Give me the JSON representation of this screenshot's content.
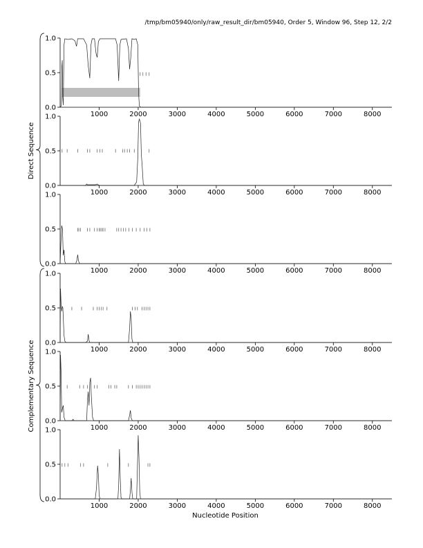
{
  "chart_data": {
    "type": "line",
    "title": "/tmp/bm05940/only/raw_result_dir/bm05940, Order 5, Window 96, Step 12, 2/2",
    "xlabel": "Nucleotide Position",
    "group_labels": [
      "Direct Sequence",
      "Complementary Sequence"
    ],
    "xlim": [
      0,
      8500
    ],
    "ylim": [
      0,
      1
    ],
    "x_ticks": [
      1000,
      2000,
      3000,
      4000,
      5000,
      6000,
      7000,
      8000
    ],
    "y_ticks": [
      0.0,
      0.5,
      1.0
    ],
    "y_tick_labels": [
      "0.0",
      "0.5",
      "1.0"
    ],
    "shaded_region": {
      "panel": 0,
      "x": [
        50,
        2050
      ],
      "y": [
        0.15,
        0.28
      ],
      "color": "#bdbdbd"
    },
    "panels": [
      {
        "group": "Direct Sequence",
        "line": [
          [
            0,
            0
          ],
          [
            30,
            0.02
          ],
          [
            45,
            0.6
          ],
          [
            55,
            0.68
          ],
          [
            65,
            0.15
          ],
          [
            80,
            0.03
          ],
          [
            100,
            0.9
          ],
          [
            120,
            0.99
          ],
          [
            200,
            0.98
          ],
          [
            300,
            0.99
          ],
          [
            380,
            0.96
          ],
          [
            420,
            0.88
          ],
          [
            450,
            0.99
          ],
          [
            600,
            0.99
          ],
          [
            680,
            0.9
          ],
          [
            720,
            0.6
          ],
          [
            760,
            0.42
          ],
          [
            790,
            0.9
          ],
          [
            820,
            0.99
          ],
          [
            880,
            0.99
          ],
          [
            920,
            0.78
          ],
          [
            950,
            0.72
          ],
          [
            980,
            0.95
          ],
          [
            1020,
            0.99
          ],
          [
            1200,
            0.99
          ],
          [
            1300,
            0.99
          ],
          [
            1420,
            0.99
          ],
          [
            1460,
            0.9
          ],
          [
            1500,
            0.38
          ],
          [
            1530,
            0.9
          ],
          [
            1560,
            0.98
          ],
          [
            1700,
            0.99
          ],
          [
            1750,
            0.85
          ],
          [
            1780,
            0.55
          ],
          [
            1810,
            0.72
          ],
          [
            1840,
            0.99
          ],
          [
            1900,
            0.98
          ],
          [
            1950,
            0.99
          ],
          [
            1990,
            0.9
          ],
          [
            2010,
            0.2
          ],
          [
            2030,
            0.02
          ],
          [
            2060,
            0
          ],
          [
            8500,
            0
          ]
        ],
        "ticks_y": 0.48,
        "ticks": [
          2050,
          2120,
          2200,
          2280
        ]
      },
      {
        "group": "Direct Sequence",
        "line": [
          [
            0,
            0
          ],
          [
            650,
            0
          ],
          [
            680,
            0.02
          ],
          [
            700,
            0.01
          ],
          [
            900,
            0.01
          ],
          [
            950,
            0.02
          ],
          [
            1000,
            0
          ],
          [
            1900,
            0
          ],
          [
            1960,
            0.05
          ],
          [
            1990,
            0.4
          ],
          [
            2010,
            0.92
          ],
          [
            2030,
            0.96
          ],
          [
            2060,
            0.9
          ],
          [
            2080,
            0.45
          ],
          [
            2100,
            0.3
          ],
          [
            2130,
            0.02
          ],
          [
            2160,
            0
          ],
          [
            8500,
            0
          ]
        ],
        "ticks_y": 0.5,
        "ticks": [
          50,
          180,
          450,
          700,
          760,
          950,
          1020,
          1080,
          1420,
          1600,
          1650,
          1720,
          1780,
          1900,
          2280
        ]
      },
      {
        "group": "Direct Sequence",
        "line": [
          [
            0,
            0
          ],
          [
            20,
            0.3
          ],
          [
            40,
            0.55
          ],
          [
            60,
            0.5
          ],
          [
            80,
            0.12
          ],
          [
            100,
            0.2
          ],
          [
            120,
            0.03
          ],
          [
            140,
            0
          ],
          [
            400,
            0
          ],
          [
            430,
            0.05
          ],
          [
            450,
            0.13
          ],
          [
            470,
            0.04
          ],
          [
            500,
            0
          ],
          [
            8500,
            0
          ]
        ],
        "ticks_y": 0.49,
        "ticks": [
          450,
          480,
          520,
          700,
          760,
          880,
          950,
          1000,
          1030,
          1070,
          1100,
          1150,
          1450,
          1500,
          1560,
          1620,
          1680,
          1760,
          1850,
          1950,
          2050,
          2150,
          2220,
          2300
        ]
      },
      {
        "group": "Complementary Sequence",
        "line": [
          [
            0,
            0
          ],
          [
            10,
            0.78
          ],
          [
            25,
            0.55
          ],
          [
            40,
            0.45
          ],
          [
            55,
            0.52
          ],
          [
            70,
            0.5
          ],
          [
            85,
            0.3
          ],
          [
            100,
            0.1
          ],
          [
            120,
            0.02
          ],
          [
            150,
            0
          ],
          [
            650,
            0
          ],
          [
            700,
            0.02
          ],
          [
            720,
            0.12
          ],
          [
            740,
            0.03
          ],
          [
            760,
            0
          ],
          [
            1750,
            0
          ],
          [
            1780,
            0.2
          ],
          [
            1800,
            0.45
          ],
          [
            1820,
            0.35
          ],
          [
            1840,
            0.05
          ],
          [
            1860,
            0
          ],
          [
            8500,
            0
          ]
        ],
        "ticks_y": 0.49,
        "ticks": [
          300,
          550,
          850,
          950,
          1000,
          1050,
          1100,
          1200,
          1850,
          1920,
          1980,
          2100,
          2150,
          2200,
          2250,
          2300
        ]
      },
      {
        "group": "Complementary Sequence",
        "line": [
          [
            0,
            0
          ],
          [
            10,
            0.95
          ],
          [
            25,
            0.7
          ],
          [
            40,
            0.12
          ],
          [
            60,
            0.18
          ],
          [
            80,
            0.22
          ],
          [
            100,
            0.05
          ],
          [
            130,
            0
          ],
          [
            300,
            0
          ],
          [
            330,
            0.02
          ],
          [
            360,
            0
          ],
          [
            680,
            0
          ],
          [
            700,
            0.3
          ],
          [
            720,
            0.42
          ],
          [
            740,
            0.22
          ],
          [
            760,
            0.55
          ],
          [
            780,
            0.62
          ],
          [
            800,
            0.35
          ],
          [
            830,
            0.05
          ],
          [
            860,
            0
          ],
          [
            1750,
            0
          ],
          [
            1780,
            0.08
          ],
          [
            1800,
            0.15
          ],
          [
            1820,
            0.04
          ],
          [
            1850,
            0
          ],
          [
            8500,
            0
          ]
        ],
        "ticks_y": 0.49,
        "ticks": [
          180,
          500,
          600,
          700,
          880,
          950,
          1250,
          1300,
          1400,
          1450,
          1750,
          1850,
          1950,
          2000,
          2050,
          2100,
          2150,
          2200,
          2250,
          2300
        ]
      },
      {
        "group": "Complementary Sequence",
        "line": [
          [
            0,
            0
          ],
          [
            900,
            0
          ],
          [
            930,
            0.15
          ],
          [
            960,
            0.48
          ],
          [
            980,
            0.35
          ],
          [
            1000,
            0.05
          ],
          [
            1020,
            0
          ],
          [
            1480,
            0
          ],
          [
            1500,
            0.2
          ],
          [
            1520,
            0.72
          ],
          [
            1540,
            0.3
          ],
          [
            1560,
            0.02
          ],
          [
            1580,
            0
          ],
          [
            1780,
            0
          ],
          [
            1800,
            0.12
          ],
          [
            1820,
            0.3
          ],
          [
            1840,
            0.1
          ],
          [
            1860,
            0
          ],
          [
            1960,
            0
          ],
          [
            1980,
            0.45
          ],
          [
            2000,
            0.92
          ],
          [
            2020,
            0.6
          ],
          [
            2040,
            0.1
          ],
          [
            2060,
            0
          ],
          [
            8500,
            0
          ]
        ],
        "ticks_y": 0.49,
        "ticks": [
          50,
          120,
          200,
          520,
          600,
          1220,
          1750,
          2250,
          2300
        ]
      }
    ]
  }
}
